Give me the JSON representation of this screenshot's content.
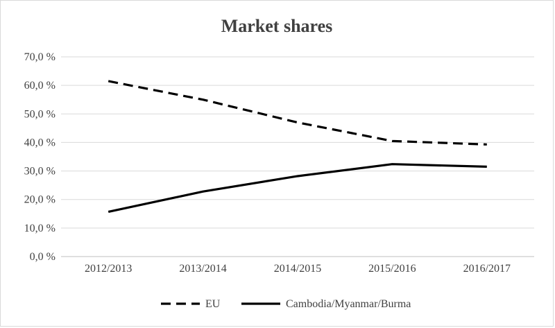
{
  "chart_data": {
    "type": "line",
    "title": "Market shares",
    "xlabel": "",
    "ylabel": "",
    "categories": [
      "2012/2013",
      "2013/2014",
      "2014/2015",
      "2015/2016",
      "2016/2017"
    ],
    "y_ticks": [
      "0,0 %",
      "10,0 %",
      "20,0 %",
      "30,0 %",
      "40,0 %",
      "50,0 %",
      "60,0 %",
      "70,0 %"
    ],
    "ylim": [
      0,
      70
    ],
    "grid": true,
    "legend_position": "bottom",
    "series": [
      {
        "name": "EU",
        "style": "dashed",
        "color": "#000000",
        "values": [
          61.5,
          55,
          47,
          40.5,
          39.3
        ]
      },
      {
        "name": "Cambodia/Myanmar/Burma",
        "style": "solid",
        "color": "#000000",
        "values": [
          15.7,
          22.8,
          28.2,
          32.4,
          31.5
        ]
      }
    ]
  }
}
